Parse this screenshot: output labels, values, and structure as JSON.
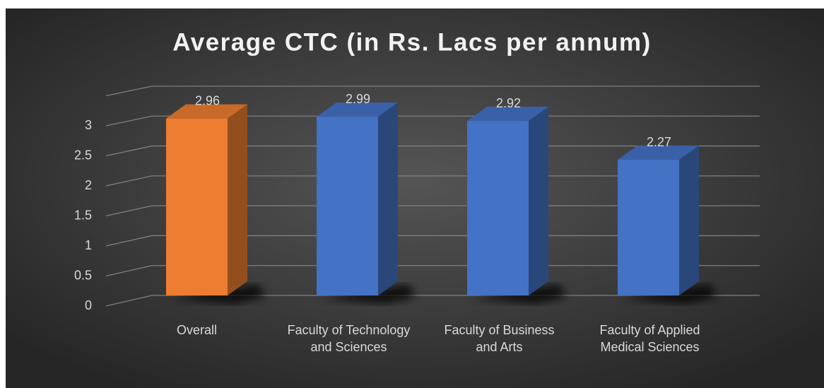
{
  "chart_data": {
    "type": "bar3d",
    "title": "Average CTC (in Rs. Lacs per annum)",
    "categories": [
      "Overall",
      "Faculty of Technology and Sciences",
      "Faculty of Business and Arts",
      "Faculty of Applied Medical Sciences"
    ],
    "values": [
      2.96,
      2.99,
      2.92,
      2.27
    ],
    "colors": [
      "#ed7d31",
      "#4472c4",
      "#4472c4",
      "#4472c4"
    ],
    "ylim": [
      0,
      3.5
    ],
    "yticks": [
      0,
      0.5,
      1,
      1.5,
      2,
      2.5,
      3
    ],
    "grid": true
  }
}
